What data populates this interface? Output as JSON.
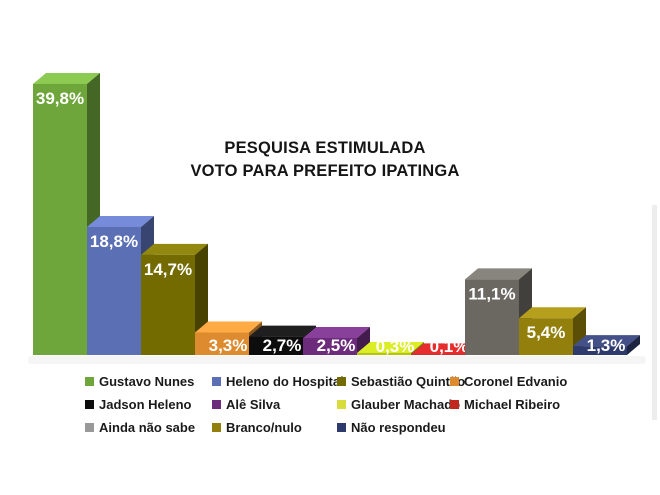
{
  "title": {
    "line1": "PESQUISA ESTIMULADA",
    "line2": "VOTO PARA PREFEITO IPATINGA"
  },
  "chart_data": {
    "type": "bar",
    "style": "3d-column",
    "title": "PESQUISA ESTIMULADA VOTO PARA PREFEITO IPATINGA",
    "xlabel": "",
    "ylabel": "",
    "ylim": [
      0,
      42
    ],
    "grid": false,
    "legend_position": "bottom",
    "categories": [
      "Gustavo Nunes",
      "Heleno do Hospital",
      "Sebastião Quintão",
      "Coronel Edvanio",
      "Jadson Heleno",
      "Alê Silva",
      "Glauber Machado",
      "Michael Ribeiro",
      "Ainda não sabe",
      "Branco/nulo",
      "Não respondeu"
    ],
    "values": [
      39.8,
      18.8,
      14.7,
      3.3,
      2.7,
      2.5,
      0.3,
      0.1,
      11.1,
      5.4,
      1.3
    ],
    "value_labels": [
      "39,8%",
      "18,8%",
      "14,7%",
      "3,3%",
      "2,7%",
      "2,5%",
      "0,3%",
      "0,1%",
      "11,1%",
      "5,4%",
      "1,3%"
    ],
    "bar_colors": [
      "#6FA63B",
      "#5B6FB5",
      "#746B00",
      "#DE8A2F",
      "#0D0D0D",
      "#6C2B7B",
      "#B5C513",
      "#C0191B",
      "#6B6862",
      "#93800C",
      "#2E3A6B"
    ],
    "value_label_color": "#ffffff"
  },
  "legend": {
    "items": [
      {
        "label": "Gustavo Nunes",
        "color": "#6FA63B"
      },
      {
        "label": "Heleno do Hospital",
        "color": "#5B6FB5"
      },
      {
        "label": "Sebastião Quintão",
        "color": "#746B00"
      },
      {
        "label": "Coronel Edvanio",
        "color": "#DE8A2F"
      },
      {
        "label": "Jadson Heleno",
        "color": "#0D0D0D"
      },
      {
        "label": "Alê Silva",
        "color": "#6C2B7B"
      },
      {
        "label": "Glauber Machado",
        "color": "#D8DC3D"
      },
      {
        "label": "Michael Ribeiro",
        "color": "#C2271D"
      },
      {
        "label": "Ainda não sabe",
        "color": "#999999"
      },
      {
        "label": "Branco/nulo",
        "color": "#93800C"
      },
      {
        "label": "Não respondeu",
        "color": "#2E3A6B"
      }
    ]
  },
  "decor": {
    "floor_shadow_color": "#EDEDED",
    "right_edge_color": "#EDEDED",
    "background": "#FFFFFF"
  }
}
